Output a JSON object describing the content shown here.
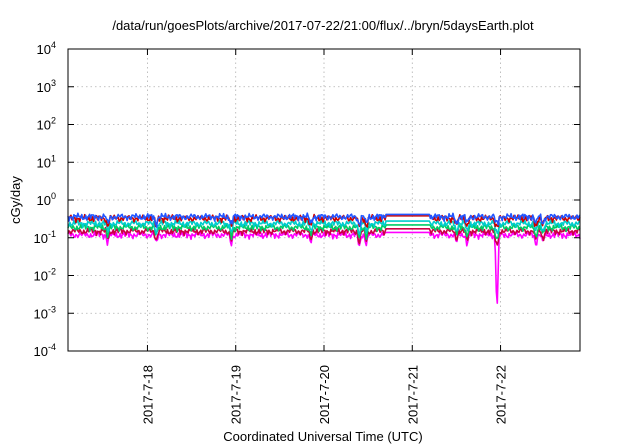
{
  "chart_data": {
    "type": "line",
    "title": "/data/run/goesPlots/archive/2017-07-22/21:00/flux/../bryn/5daysEarth.plot",
    "xlabel": "Coordinated Universal Time (UTC)",
    "ylabel": "cGy/day",
    "yscale": "log",
    "ylim_exponents": [
      -4,
      4
    ],
    "yticks": [
      {
        "base": "10",
        "exp": "4"
      },
      {
        "base": "10",
        "exp": "3"
      },
      {
        "base": "10",
        "exp": "2"
      },
      {
        "base": "10",
        "exp": "1"
      },
      {
        "base": "10",
        "exp": "0"
      },
      {
        "base": "10",
        "exp": "-1"
      },
      {
        "base": "10",
        "exp": "-2"
      },
      {
        "base": "10",
        "exp": "-3"
      },
      {
        "base": "10",
        "exp": "-4"
      }
    ],
    "xlim_days": [
      17.1,
      22.9
    ],
    "xticks": [
      {
        "label": "2017-7-18",
        "day": 18
      },
      {
        "label": "2017-7-19",
        "day": 19
      },
      {
        "label": "2017-7-20",
        "day": 20
      },
      {
        "label": "2017-7-21",
        "day": 21
      },
      {
        "label": "2017-7-22",
        "day": 22
      }
    ],
    "grid": true,
    "gap": [
      20.7,
      21.2
    ],
    "dips": [
      {
        "day": 17.55,
        "factor": 0.6
      },
      {
        "day": 18.1,
        "factor": 0.55
      },
      {
        "day": 18.95,
        "factor": 0.55
      },
      {
        "day": 19.85,
        "factor": 0.6
      },
      {
        "day": 20.4,
        "factor": 0.45
      },
      {
        "day": 20.48,
        "factor": 0.55
      },
      {
        "day": 20.95,
        "factor": 0.55
      },
      {
        "day": 21.5,
        "factor": 0.6
      },
      {
        "day": 21.62,
        "factor": 0.55
      },
      {
        "day": 21.96,
        "factor": 0.008
      },
      {
        "day": 22.4,
        "factor": 0.55
      },
      {
        "day": 22.48,
        "factor": 0.6
      }
    ],
    "series": [
      {
        "color": "#ff00ff",
        "level": 0.12
      },
      {
        "color": "#cc0044",
        "level": 0.15
      },
      {
        "color": "#00cc66",
        "level": 0.19
      },
      {
        "color": "#00cccc",
        "level": 0.24
      },
      {
        "color": "#cc0000",
        "level": 0.33
      },
      {
        "color": "#2255ff",
        "level": 0.36
      }
    ]
  }
}
